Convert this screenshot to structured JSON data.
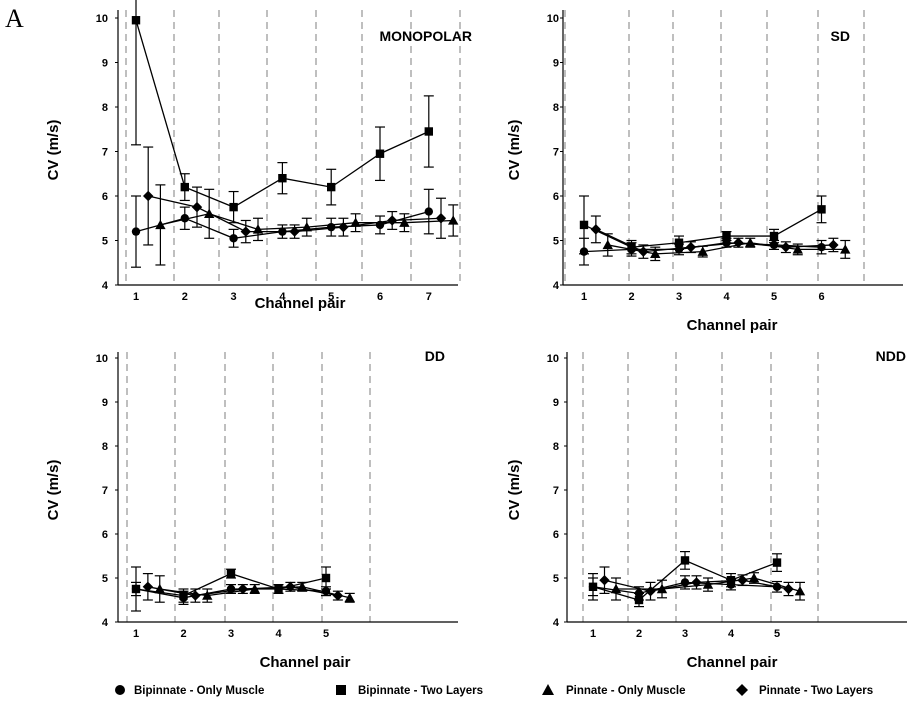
{
  "figure_label": "A",
  "chart_data": [
    {
      "type": "line",
      "title": "MONOPOLAR",
      "xlabel": "Channel pair",
      "ylabel": "CV (m/s)",
      "ylim": [
        4,
        10
      ],
      "yticks": [
        "4",
        "5",
        "6",
        "7",
        "8",
        "9",
        "10"
      ],
      "xticks": [
        "1",
        "2",
        "3",
        "4",
        "5",
        "6",
        "7"
      ],
      "series": [
        {
          "name": "Bipinnate - Only Muscle",
          "marker": "circle",
          "x": [
            1,
            2,
            3,
            4,
            5,
            6,
            7
          ],
          "y": [
            5.2,
            5.5,
            5.05,
            5.2,
            5.3,
            5.35,
            5.65
          ],
          "err": [
            0.8,
            0.25,
            0.2,
            0.15,
            0.2,
            0.2,
            0.5
          ]
        },
        {
          "name": "Bipinnate - Two Layers",
          "marker": "square",
          "x": [
            1,
            2,
            3,
            4,
            5,
            6,
            7
          ],
          "y": [
            9.95,
            6.2,
            5.75,
            6.4,
            6.2,
            6.95,
            7.45
          ],
          "err": [
            2.8,
            0.3,
            0.35,
            0.35,
            0.4,
            0.6,
            0.8
          ]
        },
        {
          "name": "Pinnate - Only Muscle",
          "marker": "triangle",
          "x": [
            1.5,
            2.5,
            3.5,
            4.5,
            5.5,
            6.5,
            7.5
          ],
          "y": [
            5.35,
            5.6,
            5.25,
            5.3,
            5.4,
            5.4,
            5.45
          ],
          "err": [
            0.9,
            0.55,
            0.25,
            0.2,
            0.2,
            0.2,
            0.35
          ]
        },
        {
          "name": "Pinnate - Two Layers",
          "marker": "diamond",
          "x": [
            1.25,
            2.25,
            3.25,
            4.25,
            5.25,
            6.25,
            7.25
          ],
          "y": [
            6.0,
            5.75,
            5.2,
            5.2,
            5.3,
            5.45,
            5.5
          ],
          "err": [
            1.1,
            0.45,
            0.25,
            0.15,
            0.2,
            0.2,
            0.45
          ]
        }
      ]
    },
    {
      "type": "line",
      "title": "SD",
      "xlabel": "Channel pair",
      "ylabel": "CV (m/s)",
      "ylim": [
        4,
        10
      ],
      "yticks": [
        "4",
        "5",
        "6",
        "7",
        "8",
        "9",
        "10"
      ],
      "xticks": [
        "1",
        "2",
        "3",
        "4",
        "5",
        "6"
      ],
      "series": [
        {
          "name": "Bipinnate - Only Muscle",
          "marker": "circle",
          "x": [
            1,
            2,
            3,
            4,
            5,
            6
          ],
          "y": [
            4.75,
            4.8,
            4.8,
            4.95,
            4.9,
            4.85
          ],
          "err": [
            0.3,
            0.15,
            0.12,
            0.1,
            0.1,
            0.15
          ]
        },
        {
          "name": "Bipinnate - Two Layers",
          "marker": "square",
          "x": [
            1,
            2,
            3,
            4,
            5,
            6
          ],
          "y": [
            5.35,
            4.85,
            4.95,
            5.1,
            5.1,
            5.7
          ],
          "err": [
            0.65,
            0.15,
            0.15,
            0.1,
            0.15,
            0.3
          ]
        },
        {
          "name": "Pinnate - Only Muscle",
          "marker": "triangle",
          "x": [
            1.5,
            2.5,
            3.5,
            4.5,
            5.5,
            6.5
          ],
          "y": [
            4.9,
            4.7,
            4.75,
            4.95,
            4.8,
            4.8
          ],
          "err": [
            0.25,
            0.15,
            0.12,
            0.1,
            0.12,
            0.2
          ]
        },
        {
          "name": "Pinnate - Two Layers",
          "marker": "diamond",
          "x": [
            1.25,
            2.25,
            3.25,
            4.25,
            5.25,
            6.25
          ],
          "y": [
            5.25,
            4.75,
            4.85,
            4.95,
            4.85,
            4.9
          ],
          "err": [
            0.3,
            0.15,
            0.12,
            0.1,
            0.12,
            0.15
          ]
        }
      ]
    },
    {
      "type": "line",
      "title": "DD",
      "xlabel": "Channel pair",
      "ylabel": "CV (m/s)",
      "ylim": [
        4,
        10
      ],
      "yticks": [
        "4",
        "5",
        "6",
        "7",
        "8",
        "9",
        "10"
      ],
      "xticks": [
        "1",
        "2",
        "3",
        "4",
        "5"
      ],
      "series": [
        {
          "name": "Bipinnate - Only Muscle",
          "marker": "circle",
          "x": [
            1,
            2,
            3,
            4,
            5
          ],
          "y": [
            4.75,
            4.55,
            4.75,
            4.75,
            4.7
          ],
          "err": [
            0.15,
            0.15,
            0.1,
            0.1,
            0.1
          ]
        },
        {
          "name": "Bipinnate - Two Layers",
          "marker": "square",
          "x": [
            1,
            2,
            3,
            4,
            5
          ],
          "y": [
            4.75,
            4.6,
            5.1,
            4.75,
            5.0
          ],
          "err": [
            0.5,
            0.15,
            0.1,
            0.1,
            0.25
          ]
        },
        {
          "name": "Pinnate - Only Muscle",
          "marker": "triangle",
          "x": [
            1.5,
            2.5,
            3.5,
            4.5,
            5.5
          ],
          "y": [
            4.75,
            4.6,
            4.75,
            4.8,
            4.55
          ],
          "err": [
            0.3,
            0.15,
            0.1,
            0.1,
            0.1
          ]
        },
        {
          "name": "Pinnate - Two Layers",
          "marker": "diamond",
          "x": [
            1.25,
            2.25,
            3.25,
            4.25,
            5.25
          ],
          "y": [
            4.8,
            4.6,
            4.75,
            4.8,
            4.6
          ],
          "err": [
            0.3,
            0.15,
            0.1,
            0.1,
            0.1
          ]
        }
      ]
    },
    {
      "type": "line",
      "title": "NDD",
      "xlabel": "Channel pair",
      "ylabel": "CV (m/s)",
      "ylim": [
        4,
        10
      ],
      "yticks": [
        "4",
        "5",
        "6",
        "7",
        "8",
        "9",
        "10"
      ],
      "xticks": [
        "1",
        "2",
        "3",
        "4",
        "5"
      ],
      "series": [
        {
          "name": "Bipinnate - Only Muscle",
          "marker": "circle",
          "x": [
            1,
            2,
            3,
            4,
            5
          ],
          "y": [
            4.8,
            4.65,
            4.9,
            4.85,
            4.8
          ],
          "err": [
            0.2,
            0.15,
            0.15,
            0.12,
            0.12
          ]
        },
        {
          "name": "Bipinnate - Two Layers",
          "marker": "square",
          "x": [
            1,
            2,
            3,
            4,
            5
          ],
          "y": [
            4.8,
            4.5,
            5.4,
            4.95,
            5.35
          ],
          "err": [
            0.3,
            0.15,
            0.2,
            0.15,
            0.2
          ]
        },
        {
          "name": "Pinnate - Only Muscle",
          "marker": "triangle",
          "x": [
            1.5,
            2.5,
            3.5,
            4.5,
            5.5
          ],
          "y": [
            4.75,
            4.75,
            4.85,
            5.0,
            4.7
          ],
          "err": [
            0.25,
            0.2,
            0.15,
            0.12,
            0.2
          ]
        },
        {
          "name": "Pinnate - Two Layers",
          "marker": "diamond",
          "x": [
            1.25,
            2.25,
            3.25,
            4.25,
            5.25
          ],
          "y": [
            4.95,
            4.7,
            4.9,
            4.95,
            4.75
          ],
          "err": [
            0.3,
            0.2,
            0.15,
            0.12,
            0.15
          ]
        }
      ]
    }
  ],
  "legend": [
    {
      "name": "Bipinnate - Only Muscle",
      "marker": "circle"
    },
    {
      "name": "Bipinnate - Two Layers",
      "marker": "square"
    },
    {
      "name": "Pinnate - Only Muscle",
      "marker": "triangle"
    },
    {
      "name": "Pinnate - Two Layers",
      "marker": "diamond"
    }
  ]
}
